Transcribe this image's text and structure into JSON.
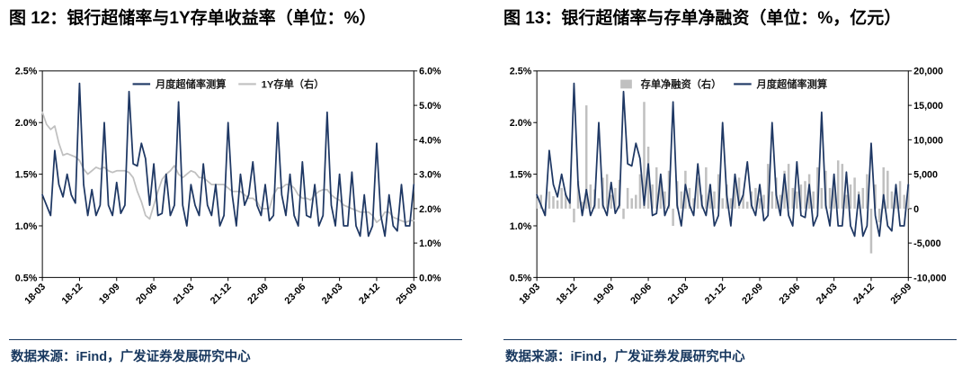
{
  "figures": [
    {
      "title": "图 12：银行超储率与1Y存单收益率（单位：%）",
      "source": "数据来源：iFind，广发证券发展研究中心"
    },
    {
      "title": "图 13：银行超储率与存单净融资（单位：%，亿元）",
      "source": "数据来源：iFind，广发证券发展研究中心"
    }
  ],
  "colors": {
    "navy": "#1F3864",
    "gray": "#C0C0C0",
    "axis": "#000000",
    "rule": "#17375E"
  },
  "chart_data": [
    {
      "type": "line",
      "title": "银行超储率与1Y存单收益率（单位：%）",
      "legend_position": "top",
      "grid": false,
      "n_points": 91,
      "x_ticks": [
        {
          "i": 0,
          "label": "18-03"
        },
        {
          "i": 9,
          "label": "18-12"
        },
        {
          "i": 18,
          "label": "19-09"
        },
        {
          "i": 27,
          "label": "20-06"
        },
        {
          "i": 36,
          "label": "21-03"
        },
        {
          "i": 45,
          "label": "21-12"
        },
        {
          "i": 54,
          "label": "22-09"
        },
        {
          "i": 63,
          "label": "23-06"
        },
        {
          "i": 72,
          "label": "24-03"
        },
        {
          "i": 81,
          "label": "24-12"
        },
        {
          "i": 90,
          "label": "25-09"
        }
      ],
      "left_axis": {
        "min": 0.5,
        "max": 2.5,
        "ticks": [
          "0.5%",
          "1.0%",
          "1.5%",
          "2.0%",
          "2.5%"
        ]
      },
      "right_axis": {
        "min": 0.0,
        "max": 6.0,
        "ticks": [
          "0.0%",
          "1.0%",
          "2.0%",
          "3.0%",
          "4.0%",
          "5.0%",
          "6.0%"
        ]
      },
      "legend": [
        {
          "label": "月度超储率测算",
          "swatch": "line",
          "color": "#1F3864"
        },
        {
          "label": "1Y存单（右）",
          "swatch": "line",
          "color": "#C0C0C0"
        }
      ],
      "series": [
        {
          "name": "1Y存单（右）",
          "type": "line",
          "axis": "right",
          "color": "#C0C0C0",
          "values": [
            4.8,
            4.45,
            4.3,
            4.4,
            3.9,
            3.55,
            3.6,
            3.55,
            3.5,
            3.4,
            3.15,
            3.0,
            3.1,
            3.2,
            3.15,
            3.2,
            3.1,
            3.05,
            3.1,
            3.1,
            3.1,
            3.05,
            2.9,
            2.5,
            2.2,
            1.8,
            1.7,
            2.1,
            2.5,
            2.85,
            3.0,
            3.1,
            3.25,
            3.0,
            2.9,
            3.0,
            3.1,
            3.05,
            2.9,
            2.9,
            2.8,
            2.7,
            2.7,
            2.7,
            2.7,
            2.6,
            2.5,
            2.5,
            2.5,
            2.4,
            2.3,
            2.3,
            2.2,
            2.0,
            2.0,
            2.0,
            2.4,
            2.6,
            2.6,
            2.7,
            2.7,
            2.6,
            2.4,
            2.3,
            2.3,
            2.25,
            2.4,
            2.5,
            2.55,
            2.55,
            2.4,
            2.3,
            2.25,
            2.1,
            2.05,
            2.0,
            1.95,
            1.9,
            1.9,
            1.9,
            1.8,
            1.6,
            1.7,
            1.9,
            1.9,
            1.75,
            1.7,
            1.65,
            1.6,
            1.65,
            1.65
          ]
        },
        {
          "name": "月度超储率测算",
          "type": "line",
          "axis": "left",
          "color": "#1F3864",
          "values": [
            1.3,
            1.2,
            1.1,
            1.73,
            1.4,
            1.28,
            1.5,
            1.3,
            1.22,
            2.38,
            1.4,
            1.1,
            1.35,
            1.1,
            1.2,
            2.0,
            1.2,
            1.1,
            1.42,
            1.12,
            1.2,
            2.3,
            1.6,
            1.58,
            1.8,
            1.65,
            1.2,
            1.6,
            1.1,
            1.12,
            1.5,
            1.1,
            1.2,
            2.2,
            1.2,
            1.0,
            1.4,
            1.2,
            1.1,
            1.6,
            1.2,
            1.1,
            1.4,
            1.0,
            1.1,
            2.0,
            1.3,
            1.0,
            1.5,
            1.2,
            1.3,
            1.62,
            1.2,
            1.1,
            1.4,
            1.05,
            1.1,
            2.0,
            1.3,
            1.1,
            1.5,
            1.1,
            1.0,
            1.62,
            1.1,
            1.08,
            1.4,
            1.0,
            1.1,
            2.1,
            1.2,
            1.0,
            1.5,
            1.0,
            1.0,
            1.52,
            1.0,
            0.9,
            1.3,
            0.9,
            1.0,
            1.8,
            1.1,
            0.9,
            1.3,
            1.0,
            0.95,
            1.4,
            1.0,
            1.0,
            1.4
          ]
        }
      ]
    },
    {
      "type": "mixed",
      "title": "银行超储率与存单净融资（单位：%，亿元）",
      "legend_position": "top",
      "grid": false,
      "n_points": 91,
      "x_ticks": [
        {
          "i": 0,
          "label": "18-03"
        },
        {
          "i": 9,
          "label": "18-12"
        },
        {
          "i": 18,
          "label": "19-09"
        },
        {
          "i": 27,
          "label": "20-06"
        },
        {
          "i": 36,
          "label": "21-03"
        },
        {
          "i": 45,
          "label": "21-12"
        },
        {
          "i": 54,
          "label": "22-09"
        },
        {
          "i": 63,
          "label": "23-06"
        },
        {
          "i": 72,
          "label": "24-03"
        },
        {
          "i": 81,
          "label": "24-12"
        },
        {
          "i": 90,
          "label": "25-09"
        }
      ],
      "left_axis": {
        "min": 0.5,
        "max": 2.5,
        "ticks": [
          "0.5%",
          "1.0%",
          "1.5%",
          "2.0%",
          "2.5%"
        ]
      },
      "right_axis": {
        "min": -10000,
        "max": 20000,
        "ticks": [
          "-10,000",
          "-5,000",
          "0",
          "5,000",
          "10,000",
          "15,000",
          "20,000"
        ]
      },
      "legend": [
        {
          "label": "存单净融资（右）",
          "swatch": "bar",
          "color": "#C0C0C0"
        },
        {
          "label": "月度超储率测算",
          "swatch": "line",
          "color": "#1F3864"
        }
      ],
      "series": [
        {
          "name": "存单净融资（右）",
          "type": "bar",
          "axis": "right",
          "color": "#C0C0C0",
          "values": [
            1500,
            2000,
            -1000,
            2500,
            1800,
            1200,
            3000,
            2200,
            1500,
            -2000,
            4000,
            1000,
            15000,
            3500,
            2800,
            1500,
            4500,
            5000,
            2000,
            3000,
            4200,
            -1500,
            3000,
            1500,
            2000,
            5000,
            15500,
            9000,
            3500,
            6000,
            4500,
            2500,
            5500,
            -2500,
            4000,
            2500,
            5500,
            3000,
            1500,
            4500,
            2000,
            6000,
            3500,
            2500,
            5000,
            1500,
            3500,
            1500,
            4000,
            4500,
            2000,
            1000,
            2500,
            3000,
            1500,
            2000,
            6500,
            2500,
            4500,
            2000,
            5500,
            6500,
            3000,
            2500,
            3500,
            4000,
            5000,
            2500,
            6000,
            3000,
            5500,
            3000,
            4000,
            7000,
            6500,
            2000,
            3500,
            4500,
            2500,
            3000,
            5000,
            -6500,
            3500,
            -2000,
            6000,
            5500,
            2500,
            3000,
            4000,
            2000,
            3500
          ]
        },
        {
          "name": "月度超储率测算",
          "type": "line",
          "axis": "left",
          "color": "#1F3864",
          "values": [
            1.3,
            1.2,
            1.1,
            1.73,
            1.4,
            1.28,
            1.5,
            1.3,
            1.22,
            2.38,
            1.4,
            1.1,
            1.35,
            1.1,
            1.2,
            2.0,
            1.2,
            1.1,
            1.42,
            1.12,
            1.2,
            2.3,
            1.6,
            1.58,
            1.8,
            1.65,
            1.2,
            1.6,
            1.1,
            1.12,
            1.5,
            1.1,
            1.2,
            2.2,
            1.2,
            1.0,
            1.4,
            1.2,
            1.1,
            1.6,
            1.2,
            1.1,
            1.4,
            1.0,
            1.1,
            2.0,
            1.3,
            1.0,
            1.5,
            1.2,
            1.3,
            1.62,
            1.2,
            1.1,
            1.4,
            1.05,
            1.1,
            2.0,
            1.3,
            1.1,
            1.5,
            1.1,
            1.0,
            1.62,
            1.1,
            1.08,
            1.4,
            1.0,
            1.1,
            2.1,
            1.2,
            1.0,
            1.5,
            1.0,
            1.0,
            1.52,
            1.0,
            0.9,
            1.3,
            0.9,
            1.0,
            1.8,
            1.1,
            0.9,
            1.3,
            1.0,
            0.95,
            1.4,
            1.0,
            1.0,
            1.4
          ]
        }
      ]
    }
  ]
}
